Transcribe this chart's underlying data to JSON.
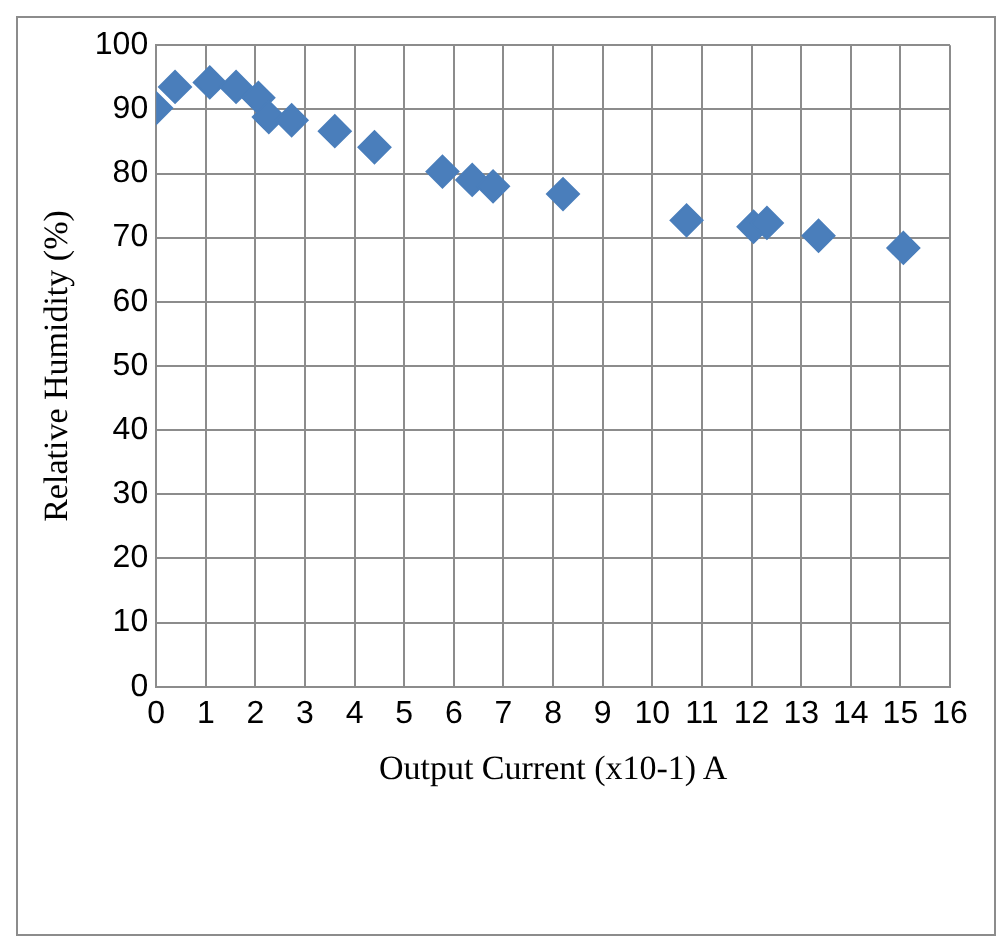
{
  "chart_data": {
    "type": "scatter",
    "xlabel": "Output Current (x10-1) A",
    "ylabel": "Relative Humidity (%)",
    "x": [
      0,
      0.38,
      1.08,
      1.61,
      2.06,
      2.27,
      2.73,
      3.6,
      4.4,
      5.77,
      6.37,
      6.79,
      8.2,
      10.69,
      12.04,
      12.31,
      13.35,
      15.06
    ],
    "series": [
      {
        "color": "#4a7ebb",
        "values": [
          90.2,
          93.5,
          94.2,
          93.5,
          91.8,
          88.8,
          88.3,
          86.6,
          84.1,
          80.3,
          79.0,
          78.0,
          76.8,
          72.7,
          71.7,
          72.3,
          70.3,
          68.4
        ]
      }
    ],
    "xlim": [
      0,
      16
    ],
    "xticks": [
      0,
      1,
      2,
      3,
      4,
      5,
      6,
      7,
      8,
      9,
      10,
      11,
      12,
      13,
      14,
      15,
      16
    ],
    "ylim": [
      0,
      100
    ],
    "yticks": [
      0,
      10,
      20,
      30,
      40,
      50,
      60,
      70,
      80,
      90,
      100
    ],
    "grid": true,
    "legend": false,
    "marker": "diamond"
  }
}
